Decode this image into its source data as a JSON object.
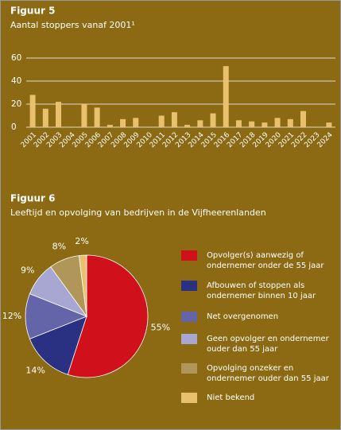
{
  "chart_data": [
    {
      "type": "bar",
      "title": "Figuur 5",
      "subtitle": "Aantal stoppers vanaf 2001¹",
      "categories": [
        "2001",
        "2002",
        "2003",
        "2004",
        "2005",
        "2006",
        "2007",
        "2008",
        "2009",
        "2010",
        "2011",
        "2012",
        "2013",
        "2014",
        "2015",
        "2016",
        "2017",
        "2018",
        "2019",
        "2020",
        "2021",
        "2022",
        "2023",
        "2024"
      ],
      "values": [
        28,
        16,
        22,
        0,
        20,
        17,
        2,
        7,
        8,
        0,
        10,
        13,
        2,
        6,
        12,
        53,
        6,
        5,
        4,
        8,
        7,
        14,
        0,
        4
      ],
      "color": "#e9c16e",
      "ylim": [
        0,
        60
      ],
      "yticks": [
        0,
        20,
        40,
        60
      ],
      "grid": true
    },
    {
      "type": "pie",
      "title": "Figuur 6",
      "subtitle": "Leeftijd en opvolging van bedrijven in de Vijfheerenlanden",
      "categories": [
        "Opvolger(s) aanwezig of ondernemer onder de 55 jaar",
        "Afbouwen of stoppen als ondernemer binnen 10 jaar",
        "Net overgenomen",
        "Geen opvolger en ondernemer ouder dan 55 jaar",
        "Opvolging onzeker en ondernemer ouder dan 55 jaar",
        "Niet bekend"
      ],
      "values": [
        55,
        14,
        12,
        9,
        8,
        2
      ],
      "value_labels": [
        "55%",
        "14%",
        "12%",
        "9%",
        "8%",
        "2%"
      ],
      "colors": [
        "#d0101a",
        "#2b3182",
        "#6464a8",
        "#a7a7d2",
        "#b09659",
        "#e9c16e"
      ],
      "legend": "right"
    }
  ]
}
